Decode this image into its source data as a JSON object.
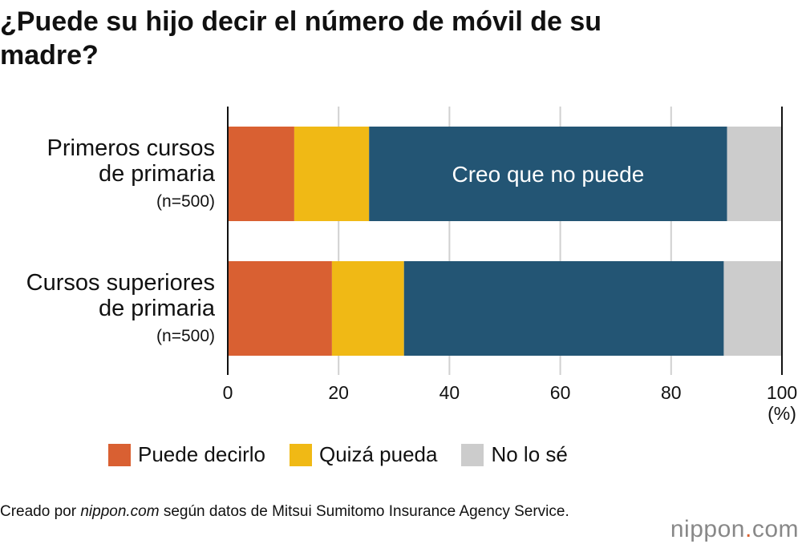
{
  "chart_data": {
    "type": "bar",
    "orientation": "horizontal",
    "stacked": true,
    "title": "¿Puede su hijo decir el número de móvil de su madre?",
    "categories": [
      {
        "line1": "Primeros cursos",
        "line2": "de primaria",
        "n": "(n=500)"
      },
      {
        "line1": "Cursos superiores",
        "line2": "de primaria",
        "n": "(n=500)"
      }
    ],
    "series": [
      {
        "name": "Puede decirlo",
        "color": "#d96032",
        "values": [
          12.0,
          18.8
        ]
      },
      {
        "name": "Quizá pueda",
        "color": "#f0b915",
        "values": [
          13.5,
          13.0
        ]
      },
      {
        "name": "Creo que no puede",
        "color": "#235574",
        "values": [
          64.6,
          57.7
        ]
      },
      {
        "name": "No lo sé",
        "color": "#cccccc",
        "values": [
          9.9,
          10.5
        ]
      }
    ],
    "in_bar_label": "Creo que no puede",
    "xlim": [
      0,
      100
    ],
    "xticks": [
      "0",
      "20",
      "40",
      "60",
      "80",
      "100"
    ],
    "xunit": "(%)",
    "grid": true,
    "legend_position": "bottom",
    "legend": [
      "Puede decirlo",
      "Quizá pueda",
      "No lo sé"
    ]
  },
  "source": {
    "prefix": "Creado por ",
    "site": "nippon.com",
    "suffix": " según datos de Mitsui Sumitomo Insurance Agency Service."
  },
  "logo": {
    "name": "nippon",
    "dot": ".",
    "tld": "com"
  }
}
